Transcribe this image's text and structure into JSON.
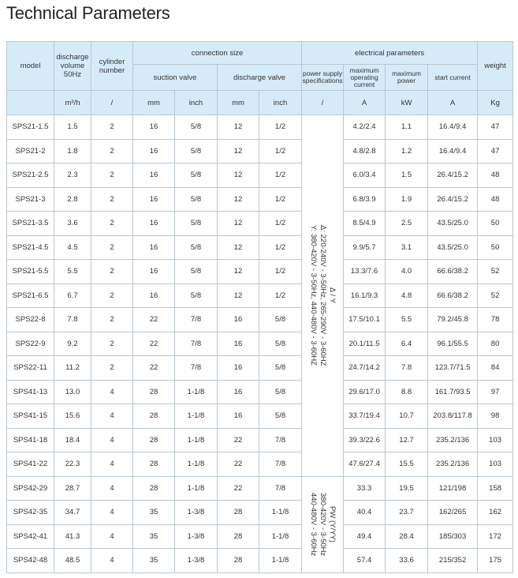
{
  "title": "Technical Parameters",
  "headers": {
    "model": "model",
    "discharge_volume": "discharge volume 50Hz",
    "cylinder": "cylinder number",
    "connection_size": "connection size",
    "electrical": "electrical parameters",
    "weight": "weight",
    "suction_valve": "suction valve",
    "discharge_valve": "discharge valve",
    "power_supply": "power supply specifications",
    "max_current": "maximum operating current",
    "max_power": "maximum power",
    "start_current": "start current"
  },
  "units": [
    "m³/h",
    "/",
    "mm",
    "inch",
    "mm",
    "inch",
    "/",
    "A",
    "kW",
    "A",
    "Kg"
  ],
  "power_supply_groups": [
    {
      "lines": [
        "Δ / Y",
        "Δ: 220-240V - 3-50Hz,  265-290V - 3-60HZ",
        "Y: 380-420V - 3-50Hz,  440-480V - 3-60HZ"
      ]
    },
    {
      "lines": [
        "PW (Y/YY)",
        "380-420V - 3-50Hz",
        "440-480V - 3-60Hz"
      ]
    }
  ],
  "rows": [
    [
      "SPS21-1.5",
      "1.5",
      "2",
      "16",
      "5/8",
      "12",
      "1/2",
      "4.2/2.4",
      "1.1",
      "16.4/9.4",
      "47"
    ],
    [
      "SPS21-2",
      "1.8",
      "2",
      "16",
      "5/8",
      "12",
      "1/2",
      "4.8/2.8",
      "1.2",
      "16.4/9.4",
      "47"
    ],
    [
      "SPS21-2.5",
      "2.3",
      "2",
      "16",
      "5/8",
      "12",
      "1/2",
      "6.0/3.4",
      "1.5",
      "26.4/15.2",
      "48"
    ],
    [
      "SPS21-3",
      "2.8",
      "2",
      "16",
      "5/8",
      "12",
      "1/2",
      "6.8/3.9",
      "1.9",
      "26.4/15.2",
      "48"
    ],
    [
      "SPS21-3.5",
      "3.6",
      "2",
      "16",
      "5/8",
      "12",
      "1/2",
      "8.5/4.9",
      "2.5",
      "43.5/25.0",
      "50"
    ],
    [
      "SPS21-4.5",
      "4.5",
      "2",
      "16",
      "5/8",
      "12",
      "1/2",
      "9.9/5.7",
      "3.1",
      "43.5/25.0",
      "50"
    ],
    [
      "SPS21-5.5",
      "5.5",
      "2",
      "16",
      "5/8",
      "12",
      "1/2",
      "13.3/7.6",
      "4.0",
      "66.6/38.2",
      "52"
    ],
    [
      "SPS21-6.5",
      "6.7",
      "2",
      "16",
      "5/8",
      "12",
      "1/2",
      "16.1/9.3",
      "4.8",
      "66.6/38.2",
      "52"
    ],
    [
      "SPS22-8",
      "7.8",
      "2",
      "22",
      "7/8",
      "16",
      "5/8",
      "17.5/10.1",
      "5.5",
      "79.2/45.8",
      "78"
    ],
    [
      "SPS22-9",
      "9.2",
      "2",
      "22",
      "7/8",
      "16",
      "5/8",
      "20.1/11.5",
      "6.4",
      "96.1/55.5",
      "80"
    ],
    [
      "SPS22-11",
      "11.2",
      "2",
      "22",
      "7/8",
      "16",
      "5/8",
      "24.7/14.2",
      "7.8",
      "123.7/71.5",
      "84"
    ],
    [
      "SPS41-13",
      "13.0",
      "4",
      "28",
      "1-1/8",
      "16",
      "5/8",
      "29.6/17.0",
      "8.8",
      "161.7/93.5",
      "97"
    ],
    [
      "SPS41-15",
      "15.6",
      "4",
      "28",
      "1-1/8",
      "16",
      "5/8",
      "33.7/19.4",
      "10.7",
      "203.8/117.8",
      "98"
    ],
    [
      "SPS41-18",
      "18.4",
      "4",
      "28",
      "1-1/8",
      "22",
      "7/8",
      "39.3/22.6",
      "12.7",
      "235.2/136",
      "103"
    ],
    [
      "SPS41-22",
      "22.3",
      "4",
      "28",
      "1-1/8",
      "22",
      "7/8",
      "47.6/27.4",
      "15.5",
      "235.2/136",
      "103"
    ],
    [
      "SPS42-29",
      "28.7",
      "4",
      "28",
      "1-1/8",
      "22",
      "7/8",
      "33.3",
      "19.5",
      "121/198",
      "158"
    ],
    [
      "SPS42-35",
      "34.7",
      "4",
      "35",
      "1-3/8",
      "28",
      "1-1/8",
      "40.4",
      "23.7",
      "162/265",
      "162"
    ],
    [
      "SPS42-41",
      "41.3",
      "4",
      "35",
      "1-3/8",
      "28",
      "1-1/8",
      "49.4",
      "28.4",
      "185/303",
      "172"
    ],
    [
      "SPS42-48",
      "48.5",
      "4",
      "35",
      "1-3/8",
      "28",
      "1-1/8",
      "57.4",
      "33.6",
      "215/352",
      "175"
    ]
  ]
}
